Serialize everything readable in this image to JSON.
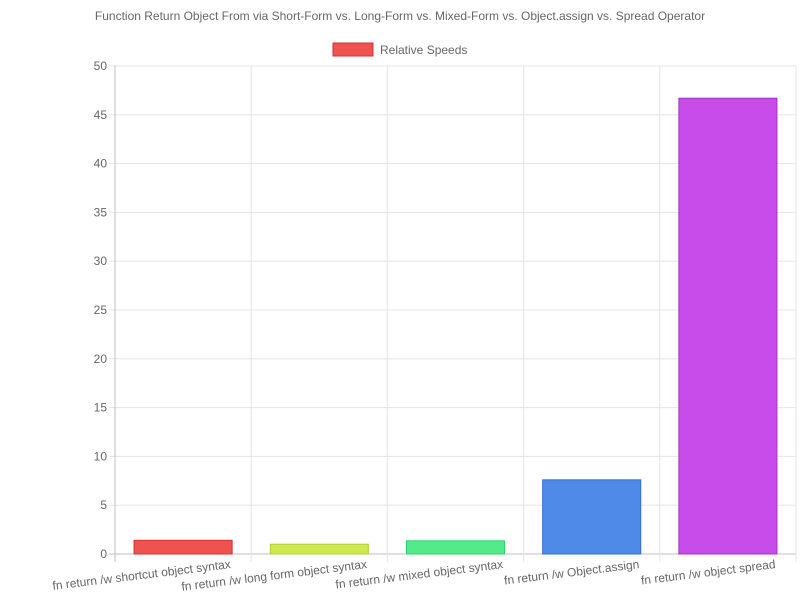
{
  "chart_data": {
    "type": "bar",
    "title": "Function Return Object From via Short-Form vs. Long-Form vs. Mixed-Form vs. Object.assign vs. Spread Operator",
    "xlabel": "",
    "ylabel": "",
    "ylim": [
      0,
      50
    ],
    "y_ticks": [
      0,
      5,
      10,
      15,
      20,
      25,
      30,
      35,
      40,
      45,
      50
    ],
    "grid": true,
    "legend_position": "top-center",
    "categories": [
      "fn return /w shortcut object syntax",
      "fn return /w long form object syntax",
      "fn return /w mixed object syntax",
      "fn return /w Object.assign",
      "fn return /w object spread"
    ],
    "series": [
      {
        "name": "Relative Speeds",
        "values": [
          1.4,
          1.0,
          1.35,
          7.6,
          46.7
        ]
      }
    ],
    "bar_colors": [
      "#ef5350",
      "#cde94f",
      "#52ea8a",
      "#4f8ae9",
      "#c84ce9"
    ],
    "bar_border_colors": [
      "#d32f2f",
      "#b5cf2f",
      "#2ecf6a",
      "#2f6fd0",
      "#a92fd0"
    ],
    "legend_color": "#ef5350",
    "legend_border_color": "#d32f2f"
  }
}
